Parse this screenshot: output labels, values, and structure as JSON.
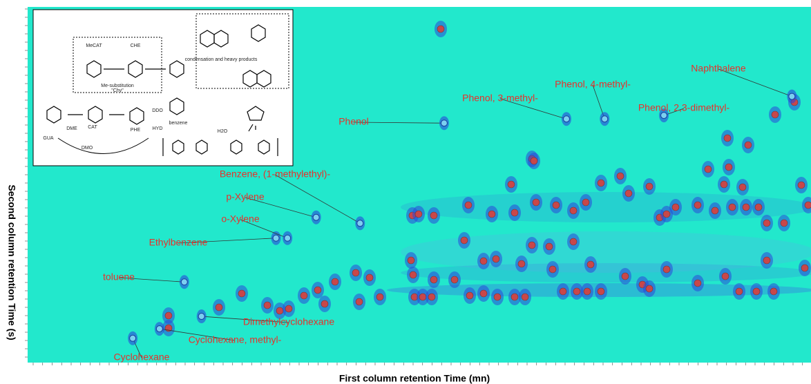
{
  "chart_data": {
    "type": "gcxgc",
    "x_label": "First column retention Time (mn)",
    "y_label": "Second column retention Time (s)",
    "xlim": [
      30,
      71
    ],
    "ylim": [
      0,
      6
    ],
    "color": "#22e8cc",
    "annotations": [
      {
        "label": "Cyclohexane",
        "x": 35.5,
        "y": 0.41
      },
      {
        "label": "Cyclohexane, methyl-",
        "x": 36.9,
        "y": 0.57
      },
      {
        "label": "Dimethylcyclohexane",
        "x": 39.1,
        "y": 0.78
      },
      {
        "label": "toluene",
        "x": 38.2,
        "y": 1.36
      },
      {
        "label": "Ethylbenzene",
        "x": 43.0,
        "y": 2.1
      },
      {
        "label": "o-Xylene",
        "x": 43.6,
        "y": 2.1
      },
      {
        "label": "p-Xylene",
        "x": 45.1,
        "y": 2.45
      },
      {
        "label": "Benzene, (1-methylethyl)-",
        "x": 47.4,
        "y": 2.35
      },
      {
        "label": "Phenol",
        "x": 51.8,
        "y": 4.04
      },
      {
        "label": "Phenol, 3-methyl-",
        "x": 58.2,
        "y": 4.11
      },
      {
        "label": "Phenol, 4-methyl-",
        "x": 60.2,
        "y": 4.11
      },
      {
        "label": "Phenol, 2,3-dimethyl-",
        "x": 63.3,
        "y": 4.17
      },
      {
        "label": "Naphthalene",
        "x": 70.0,
        "y": 4.49
      }
    ]
  },
  "inset": {
    "labels": [
      "MeCAT",
      "CHE",
      "Me-substitution",
      "\"Chy\"",
      "condensation and heavy products",
      "benzene",
      "GUA",
      "CAT",
      "PHE",
      "DME",
      "DMO",
      "DDO",
      "HYD",
      "H2O"
    ]
  }
}
